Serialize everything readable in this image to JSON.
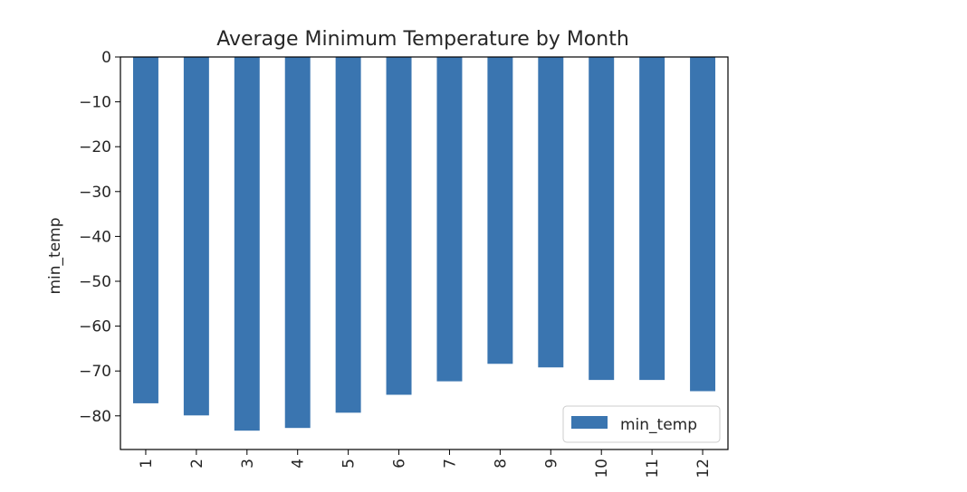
{
  "chart_data": {
    "type": "bar",
    "title": "Average Minimum Temperature by Month",
    "xlabel": "",
    "ylabel": "min_temp",
    "categories": [
      "1",
      "2",
      "3",
      "4",
      "5",
      "6",
      "7",
      "8",
      "9",
      "10",
      "11",
      "12"
    ],
    "series": [
      {
        "name": "min_temp",
        "values": [
          -77.2,
          -79.9,
          -83.3,
          -82.7,
          -79.3,
          -75.3,
          -72.3,
          -68.4,
          -69.2,
          -72.0,
          -72.0,
          -74.5
        ],
        "color": "#3a75b0"
      }
    ],
    "ylim": [
      -87.5,
      0
    ],
    "yticks": [
      0,
      -10,
      -20,
      -30,
      -40,
      -50,
      -60,
      -70,
      -80
    ],
    "ytick_labels": [
      "0",
      "−10",
      "−20",
      "−30",
      "−40",
      "−50",
      "−60",
      "−70",
      "−80"
    ],
    "xtick_rotation": "vertical",
    "grid": false,
    "legend": {
      "position": "lower-right",
      "entries": [
        "min_temp"
      ]
    }
  }
}
